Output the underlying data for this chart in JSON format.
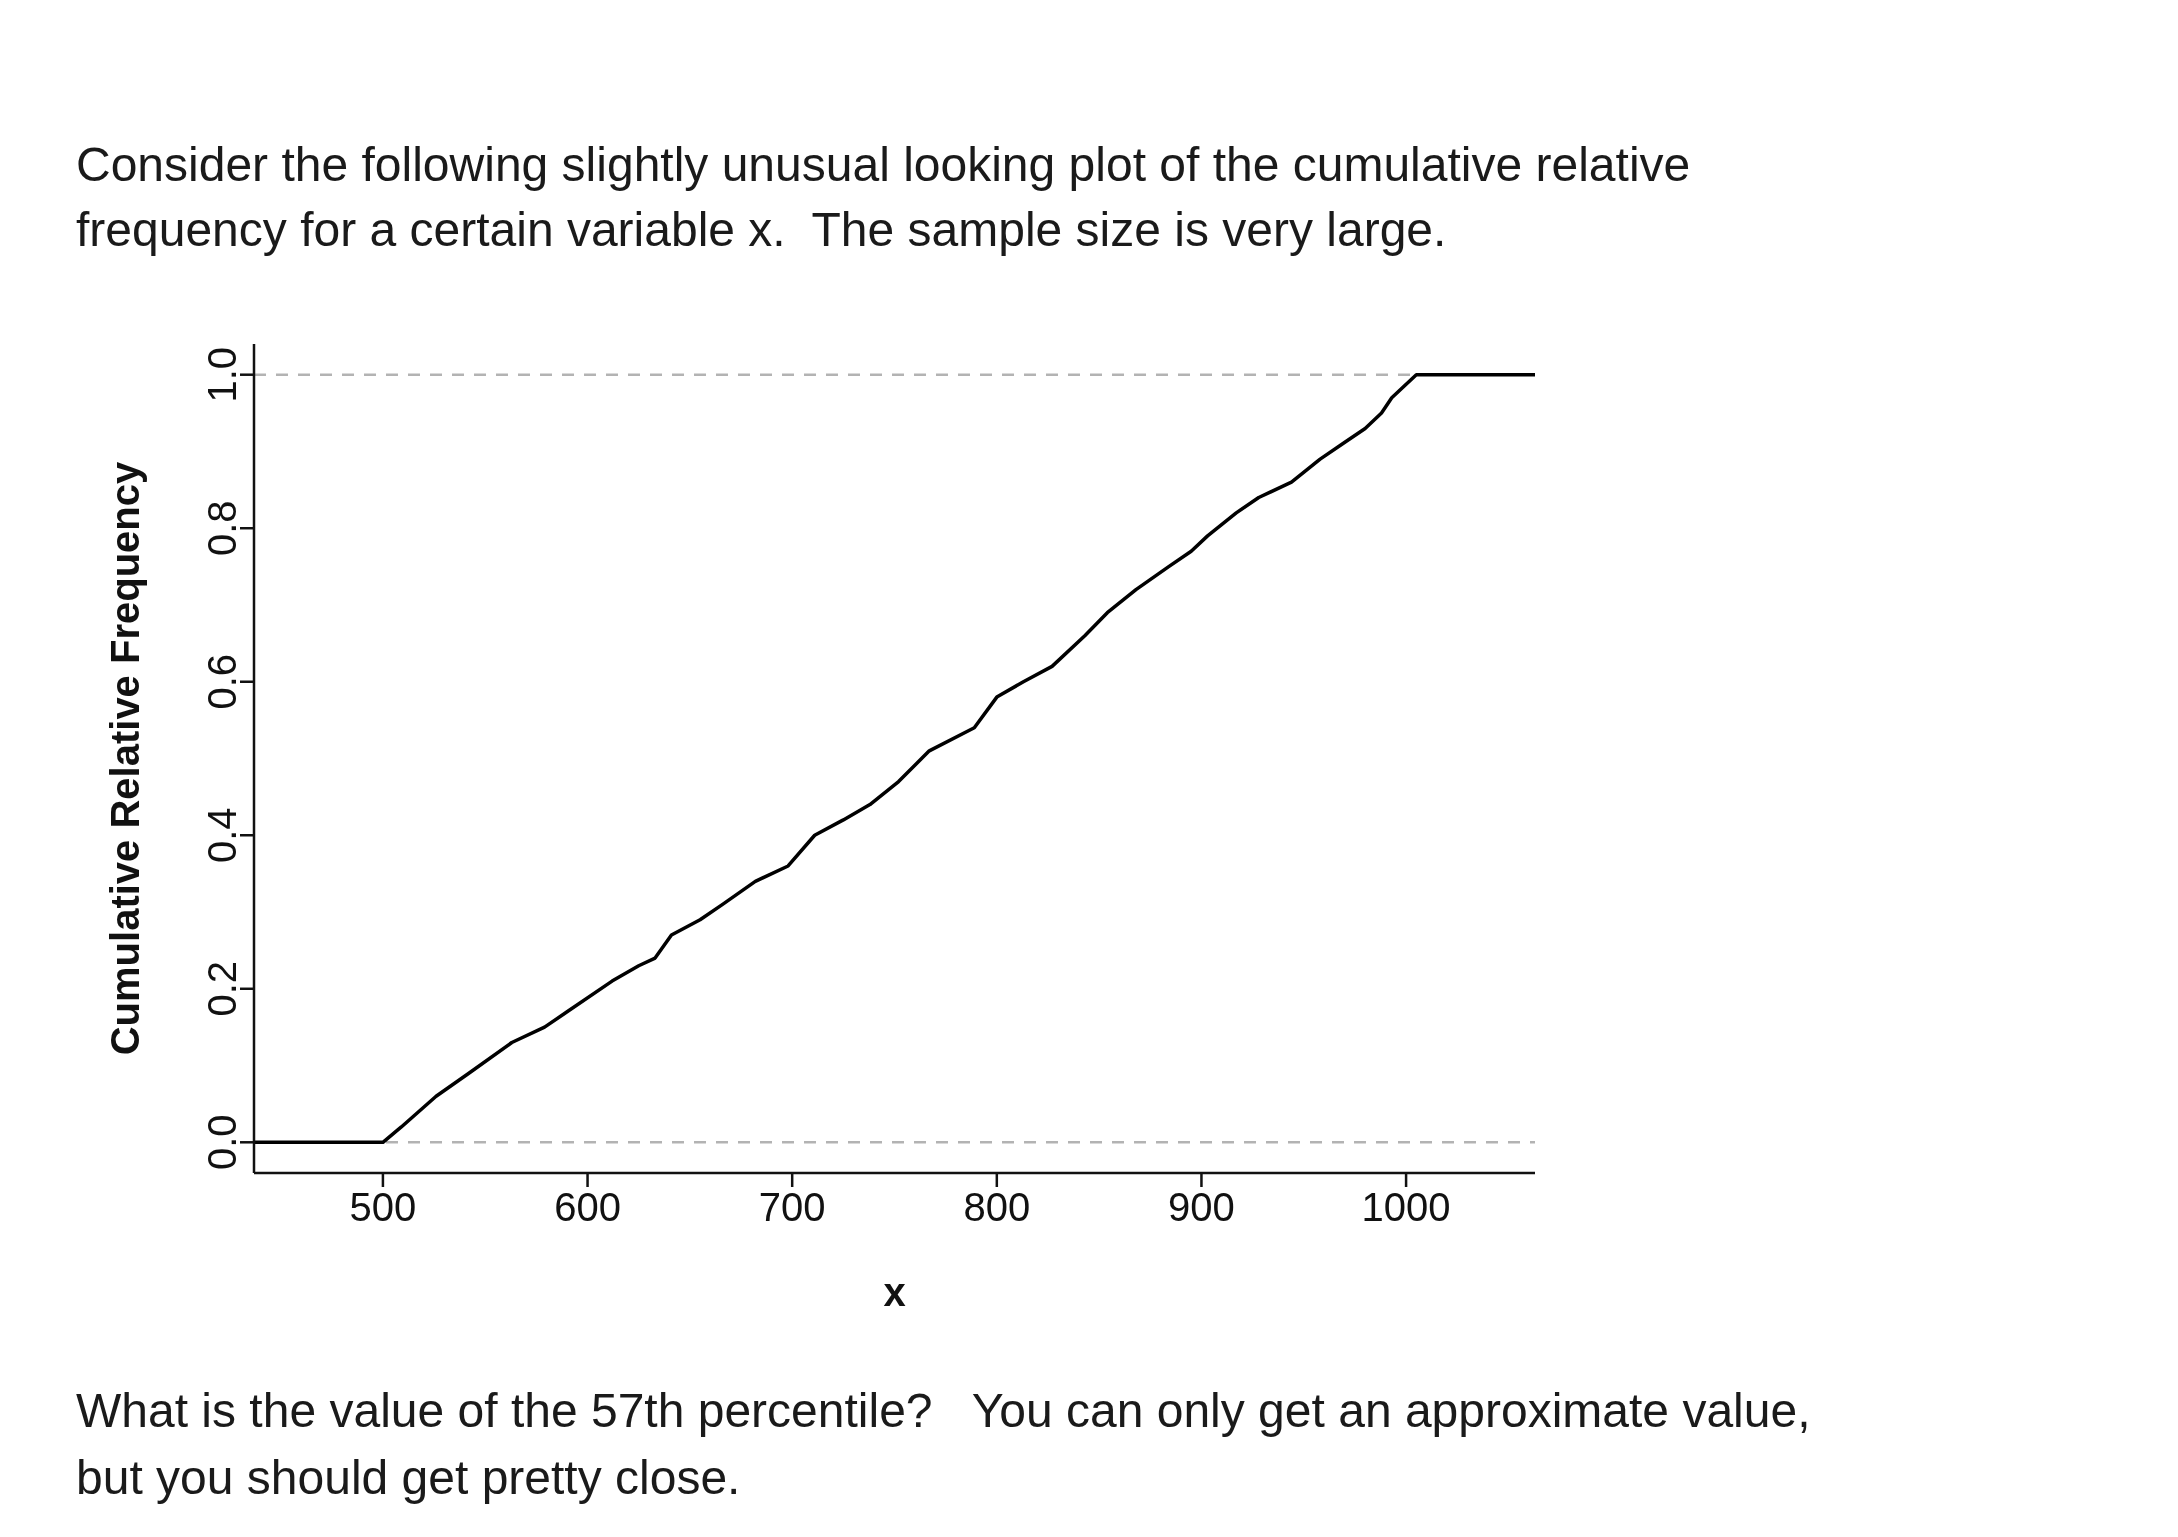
{
  "chart_data": {
    "type": "line",
    "title": "Consider the following slightly unusual looking plot of the cumulative relative frequency for a certain variable x.  The sample size is very large.",
    "xlabel": "x",
    "ylabel": "Cumulative Relative Frequency",
    "annotations": [
      "What is the value of the 57th percentile?   You can only get an approximate value, but you should get pretty close."
    ],
    "x": [
      437,
      500,
      509,
      526,
      542,
      563,
      579,
      590,
      612,
      625,
      633,
      641,
      655,
      666,
      682,
      698,
      711,
      725,
      738,
      752,
      767,
      789,
      800,
      813,
      827,
      843,
      854,
      868,
      884,
      895,
      903,
      917,
      928,
      944,
      958,
      969,
      980,
      988,
      993,
      1005,
      1063
    ],
    "values": [
      0,
      0,
      0.02,
      0.06,
      0.09,
      0.13,
      0.15,
      0.17,
      0.21,
      0.23,
      0.24,
      0.27,
      0.29,
      0.31,
      0.34,
      0.36,
      0.4,
      0.42,
      0.44,
      0.47,
      0.51,
      0.54,
      0.58,
      0.6,
      0.62,
      0.66,
      0.69,
      0.72,
      0.75,
      0.77,
      0.79,
      0.82,
      0.84,
      0.86,
      0.89,
      0.91,
      0.93,
      0.95,
      0.97,
      1,
      1
    ],
    "color": "#000000",
    "xlim": [
      437,
      1063
    ],
    "ylim": [
      -0.04,
      1.04
    ],
    "xticks": [
      500,
      600,
      700,
      800,
      900,
      1000
    ],
    "yticks": [
      {
        "value": 0,
        "label": "0.0"
      },
      0.2,
      0.4,
      0.6,
      0.8,
      {
        "value": 1,
        "label": "1.0"
      }
    ],
    "ref_lines": [
      {
        "axis": "y",
        "value": 0,
        "color": "#b3b3b3",
        "line_style": "dashed"
      },
      {
        "axis": "y",
        "value": 1,
        "color": "#b3b3b3",
        "line_style": "dashed"
      }
    ]
  }
}
